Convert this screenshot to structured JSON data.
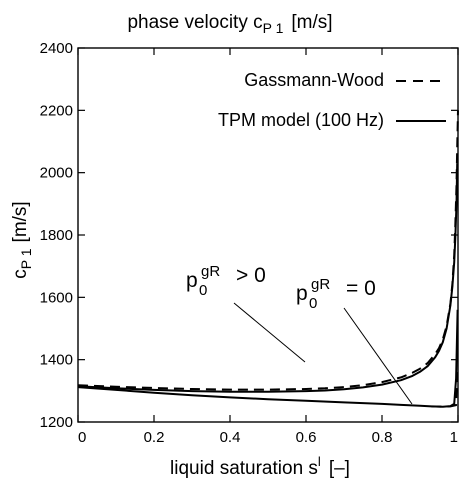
{
  "chart_data": {
    "type": "line",
    "title": "phase velocity c",
    "title_sub": "P 1",
    "title_unit": "[m/s]",
    "xlabel": "liquid saturation s",
    "xlabel_sup": "l",
    "xlabel_unit": "[–]",
    "ylabel": "c",
    "ylabel_sub": "P 1",
    "ylabel_unit": "[m/s]",
    "xlim": [
      0,
      1
    ],
    "ylim": [
      1200,
      2400
    ],
    "x_tick_labels": [
      "0",
      "0.2",
      "0.4",
      "0.6",
      "0.8",
      "1"
    ],
    "x_tick_values": [
      0,
      0.2,
      0.4,
      0.6,
      0.8,
      1.0
    ],
    "y_tick_labels": [
      "1200",
      "1400",
      "1600",
      "1800",
      "2000",
      "2200",
      "2400"
    ],
    "y_tick_values": [
      1200,
      1400,
      1600,
      1800,
      2000,
      2200,
      2400
    ],
    "grid": false,
    "legend_position": "top-right",
    "series": [
      {
        "name": "Gassmann-Wood",
        "style": "dashed",
        "color": "#000000",
        "x": [
          0,
          0.1,
          0.2,
          0.3,
          0.4,
          0.5,
          0.6,
          0.65,
          0.7,
          0.75,
          0.8,
          0.85,
          0.88,
          0.9,
          0.92,
          0.94,
          0.95,
          0.96,
          0.97,
          0.98,
          0.985,
          0.99,
          0.993,
          0.996,
          0.998,
          1.0
        ],
        "y": [
          1318,
          1313,
          1309,
          1306,
          1304,
          1304,
          1306,
          1308,
          1312,
          1318,
          1328,
          1343,
          1358,
          1371,
          1389,
          1418,
          1437,
          1465,
          1508,
          1580,
          1640,
          1735,
          1830,
          1960,
          2080,
          2200
        ]
      },
      {
        "name": "TPM model (100 Hz)",
        "style": "solid",
        "color": "#000000",
        "x": [
          0,
          0.1,
          0.2,
          0.3,
          0.4,
          0.5,
          0.6,
          0.65,
          0.7,
          0.75,
          0.8,
          0.85,
          0.88,
          0.9,
          0.92,
          0.94,
          0.95,
          0.96,
          0.97,
          0.98,
          0.985,
          0.99,
          0.993,
          0.996,
          0.998
        ],
        "y": [
          1315,
          1308,
          1303,
          1299,
          1297,
          1297,
          1299,
          1301,
          1305,
          1311,
          1320,
          1334,
          1348,
          1361,
          1379,
          1408,
          1428,
          1456,
          1500,
          1574,
          1632,
          1712,
          1790,
          1900,
          2030
        ]
      },
      {
        "name": "",
        "style": "solid",
        "color": "#000000",
        "x": [
          0,
          0.1,
          0.2,
          0.3,
          0.4,
          0.5,
          0.6,
          0.7,
          0.8,
          0.85,
          0.9,
          0.93,
          0.96,
          0.98,
          0.99,
          0.995,
          0.999
        ],
        "y": [
          1312,
          1303,
          1294,
          1286,
          1279,
          1273,
          1268,
          1263,
          1258,
          1255,
          1252,
          1250,
          1249,
          1251,
          1258,
          1340,
          1560
        ]
      },
      {
        "name": "",
        "style": "dashed",
        "color": "#000000",
        "x": [
          0.93,
          0.96,
          0.98,
          0.995,
          0.998
        ],
        "y": [
          1250,
          1249,
          1250,
          1254,
          1380
        ]
      }
    ],
    "annotations": [
      {
        "base": "p",
        "sub": "0",
        "sup": "gR",
        "text": "> 0",
        "points_to": [
          0.6,
          1302
        ]
      },
      {
        "base": "p",
        "sub": "0",
        "sup": "gR",
        "text": "= 0",
        "points_to": [
          0.9,
          1258
        ]
      }
    ]
  }
}
